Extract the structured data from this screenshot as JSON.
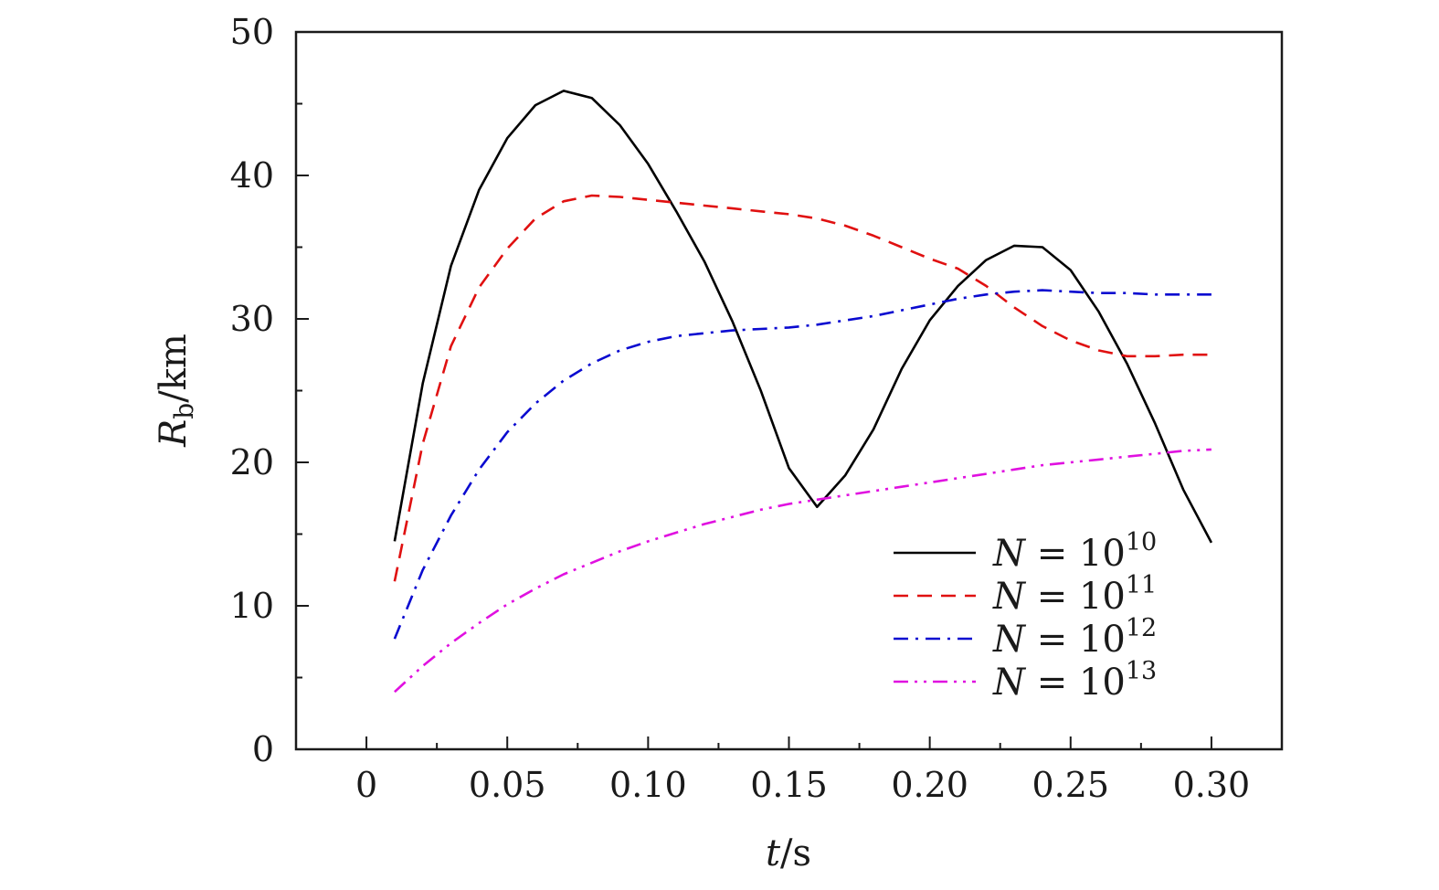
{
  "chart_data": {
    "type": "line",
    "xlabel": {
      "var": "t",
      "unit": "s"
    },
    "ylabel": {
      "var": "R",
      "sub": "b",
      "unit": "km"
    },
    "xlim": [
      -0.025,
      0.325
    ],
    "ylim": [
      0,
      50
    ],
    "x_ticks": [
      {
        "value": 0,
        "label": "0"
      },
      {
        "value": 0.05,
        "label": "0.05"
      },
      {
        "value": 0.1,
        "label": "0.10"
      },
      {
        "value": 0.15,
        "label": "0.15"
      },
      {
        "value": 0.2,
        "label": "0.20"
      },
      {
        "value": 0.25,
        "label": "0.25"
      },
      {
        "value": 0.3,
        "label": "0.30"
      }
    ],
    "y_ticks": [
      {
        "value": 0,
        "label": "0"
      },
      {
        "value": 10,
        "label": "10"
      },
      {
        "value": 20,
        "label": "20"
      },
      {
        "value": 30,
        "label": "30"
      },
      {
        "value": 40,
        "label": "40"
      },
      {
        "value": 50,
        "label": "50"
      }
    ],
    "grid": false,
    "legend_position": "bottom-right",
    "series": [
      {
        "name": "N = 10^10",
        "legend_var": "N",
        "legend_eq": "= 10",
        "legend_exp": "10",
        "color": "#000000",
        "dash": "solid",
        "x": [
          0.01,
          0.02,
          0.03,
          0.04,
          0.05,
          0.06,
          0.07,
          0.08,
          0.09,
          0.1,
          0.11,
          0.12,
          0.13,
          0.14,
          0.15,
          0.16,
          0.17,
          0.18,
          0.19,
          0.2,
          0.21,
          0.22,
          0.23,
          0.24,
          0.25,
          0.26,
          0.27,
          0.28,
          0.29,
          0.3
        ],
        "y": [
          14.5,
          25.5,
          33.7,
          39.0,
          42.6,
          44.9,
          45.9,
          45.4,
          43.5,
          40.8,
          37.5,
          34.0,
          29.8,
          25.0,
          19.6,
          16.9,
          19.1,
          22.3,
          26.5,
          29.9,
          32.3,
          34.1,
          35.1,
          35.0,
          33.4,
          30.5,
          26.9,
          22.7,
          18.1,
          14.4
        ]
      },
      {
        "name": "N = 10^11",
        "legend_var": "N",
        "legend_eq": "= 10",
        "legend_exp": "11",
        "color": "#e01010",
        "dash": "dashed",
        "x": [
          0.01,
          0.02,
          0.03,
          0.04,
          0.05,
          0.06,
          0.07,
          0.08,
          0.09,
          0.1,
          0.11,
          0.12,
          0.13,
          0.14,
          0.15,
          0.16,
          0.17,
          0.18,
          0.19,
          0.2,
          0.21,
          0.22,
          0.23,
          0.24,
          0.25,
          0.26,
          0.27,
          0.28,
          0.29,
          0.3
        ],
        "y": [
          11.7,
          21.3,
          28.1,
          32.2,
          34.9,
          37.0,
          38.2,
          38.6,
          38.5,
          38.3,
          38.1,
          37.9,
          37.7,
          37.5,
          37.3,
          37.0,
          36.5,
          35.8,
          35.0,
          34.2,
          33.5,
          32.3,
          30.8,
          29.5,
          28.5,
          27.8,
          27.4,
          27.4,
          27.5,
          27.5
        ]
      },
      {
        "name": "N = 10^12",
        "legend_var": "N",
        "legend_eq": "= 10",
        "legend_exp": "12",
        "color": "#0a0ad0",
        "dash": "dashdot",
        "x": [
          0.01,
          0.02,
          0.03,
          0.04,
          0.05,
          0.06,
          0.07,
          0.08,
          0.09,
          0.1,
          0.11,
          0.12,
          0.13,
          0.14,
          0.15,
          0.16,
          0.17,
          0.18,
          0.19,
          0.2,
          0.21,
          0.22,
          0.23,
          0.24,
          0.25,
          0.26,
          0.27,
          0.28,
          0.29,
          0.3
        ],
        "y": [
          7.7,
          12.5,
          16.3,
          19.5,
          22.1,
          24.1,
          25.7,
          26.9,
          27.8,
          28.4,
          28.8,
          29.0,
          29.2,
          29.3,
          29.4,
          29.6,
          29.9,
          30.2,
          30.6,
          31.0,
          31.4,
          31.7,
          31.9,
          32.0,
          31.9,
          31.8,
          31.8,
          31.7,
          31.7,
          31.7
        ]
      },
      {
        "name": "N = 10^13",
        "legend_var": "N",
        "legend_eq": "= 10",
        "legend_exp": "13",
        "color": "#e010e0",
        "dash": "dashdotdot",
        "x": [
          0.01,
          0.02,
          0.03,
          0.04,
          0.05,
          0.06,
          0.07,
          0.08,
          0.09,
          0.1,
          0.11,
          0.12,
          0.13,
          0.14,
          0.15,
          0.16,
          0.17,
          0.18,
          0.19,
          0.2,
          0.21,
          0.22,
          0.23,
          0.24,
          0.25,
          0.26,
          0.27,
          0.28,
          0.29,
          0.3
        ],
        "y": [
          4.0,
          5.8,
          7.4,
          8.8,
          10.1,
          11.2,
          12.2,
          13.0,
          13.8,
          14.5,
          15.1,
          15.7,
          16.2,
          16.7,
          17.1,
          17.4,
          17.7,
          18.0,
          18.3,
          18.6,
          18.9,
          19.2,
          19.5,
          19.8,
          20.0,
          20.2,
          20.4,
          20.6,
          20.8,
          20.9
        ]
      }
    ]
  }
}
